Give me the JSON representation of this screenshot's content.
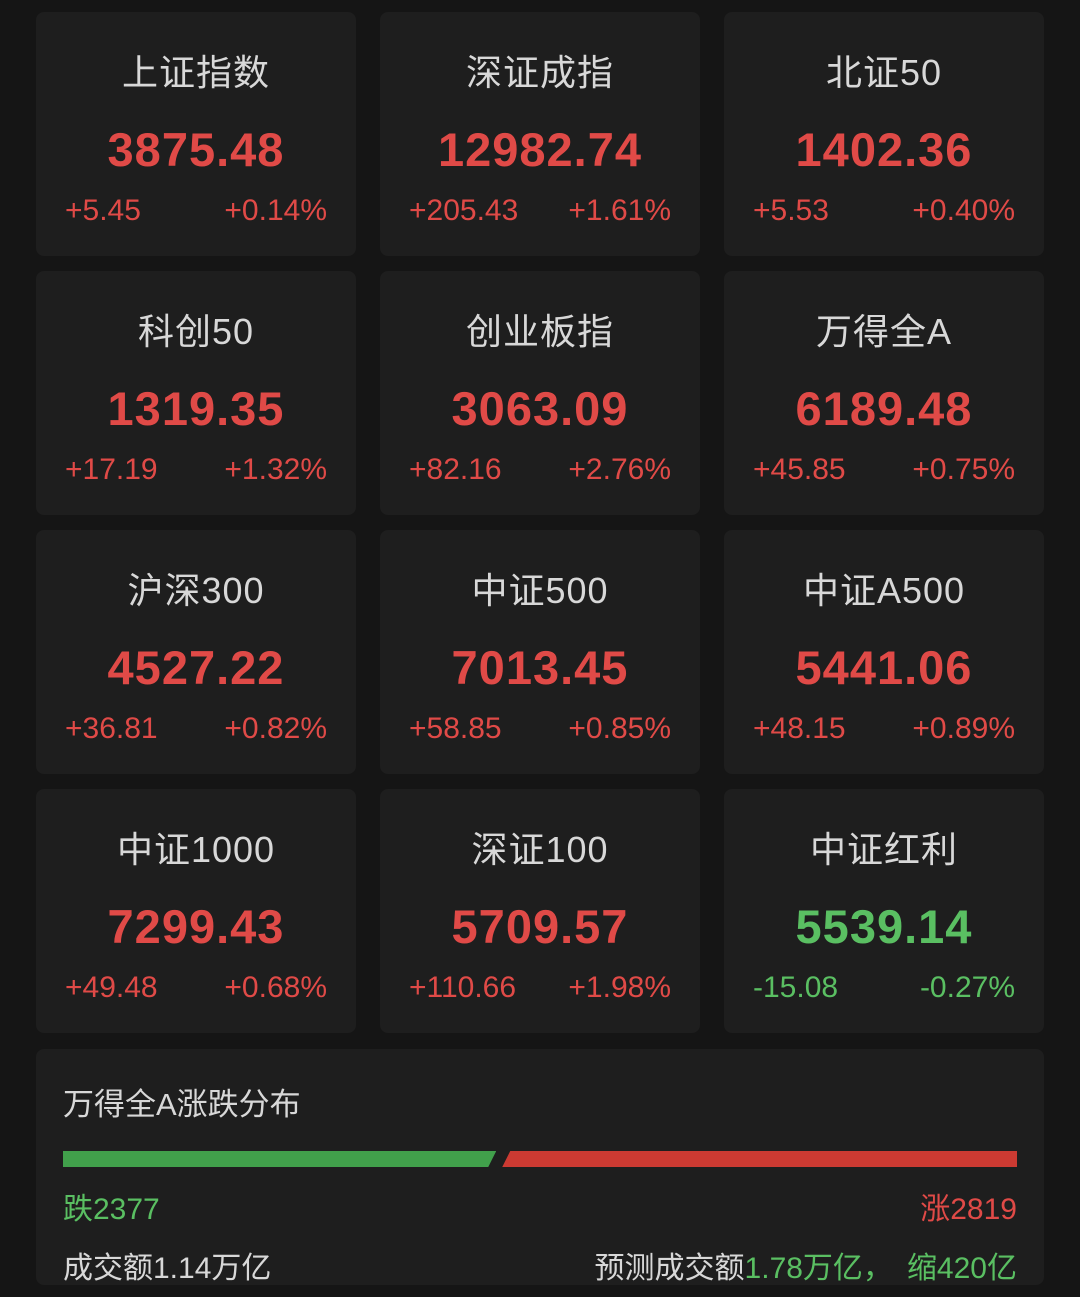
{
  "colors": {
    "background": "#151515",
    "card_background": "#1e1e1e",
    "text": "#d8d8d8",
    "up_red": "#e04a47",
    "down_green": "#5abf62",
    "bar_up_red": "#cc3a32",
    "bar_down_green": "#41a04b"
  },
  "cards": [
    {
      "name": "上证指数",
      "value": "3875.48",
      "change": "+5.45",
      "change_pct": "+0.14%",
      "direction": "up"
    },
    {
      "name": "深证成指",
      "value": "12982.74",
      "change": "+205.43",
      "change_pct": "+1.61%",
      "direction": "up"
    },
    {
      "name": "北证50",
      "value": "1402.36",
      "change": "+5.53",
      "change_pct": "+0.40%",
      "direction": "up"
    },
    {
      "name": "科创50",
      "value": "1319.35",
      "change": "+17.19",
      "change_pct": "+1.32%",
      "direction": "up"
    },
    {
      "name": "创业板指",
      "value": "3063.09",
      "change": "+82.16",
      "change_pct": "+2.76%",
      "direction": "up"
    },
    {
      "name": "万得全A",
      "value": "6189.48",
      "change": "+45.85",
      "change_pct": "+0.75%",
      "direction": "up"
    },
    {
      "name": "沪深300",
      "value": "4527.22",
      "change": "+36.81",
      "change_pct": "+0.82%",
      "direction": "up"
    },
    {
      "name": "中证500",
      "value": "7013.45",
      "change": "+58.85",
      "change_pct": "+0.85%",
      "direction": "up"
    },
    {
      "name": "中证A500",
      "value": "5441.06",
      "change": "+48.15",
      "change_pct": "+0.89%",
      "direction": "up"
    },
    {
      "name": "中证1000",
      "value": "7299.43",
      "change": "+49.48",
      "change_pct": "+0.68%",
      "direction": "up"
    },
    {
      "name": "深证100",
      "value": "5709.57",
      "change": "+110.66",
      "change_pct": "+1.98%",
      "direction": "up"
    },
    {
      "name": "中证红利",
      "value": "5539.14",
      "change": "-15.08",
      "change_pct": "-0.27%",
      "direction": "down"
    }
  ],
  "breadth": {
    "title": "万得全A涨跌分布",
    "decliners": 2377,
    "advancers": 2819,
    "down_label": "跌2377",
    "up_label": "涨2819",
    "turnover_label": "成交额1.14万亿",
    "forecast_prefix": "预测成交额",
    "forecast_value": "1.78万亿，",
    "forecast_shrink": "缩420亿",
    "bar": {
      "down_percent": 45.7,
      "up_percent": 54.3
    }
  }
}
